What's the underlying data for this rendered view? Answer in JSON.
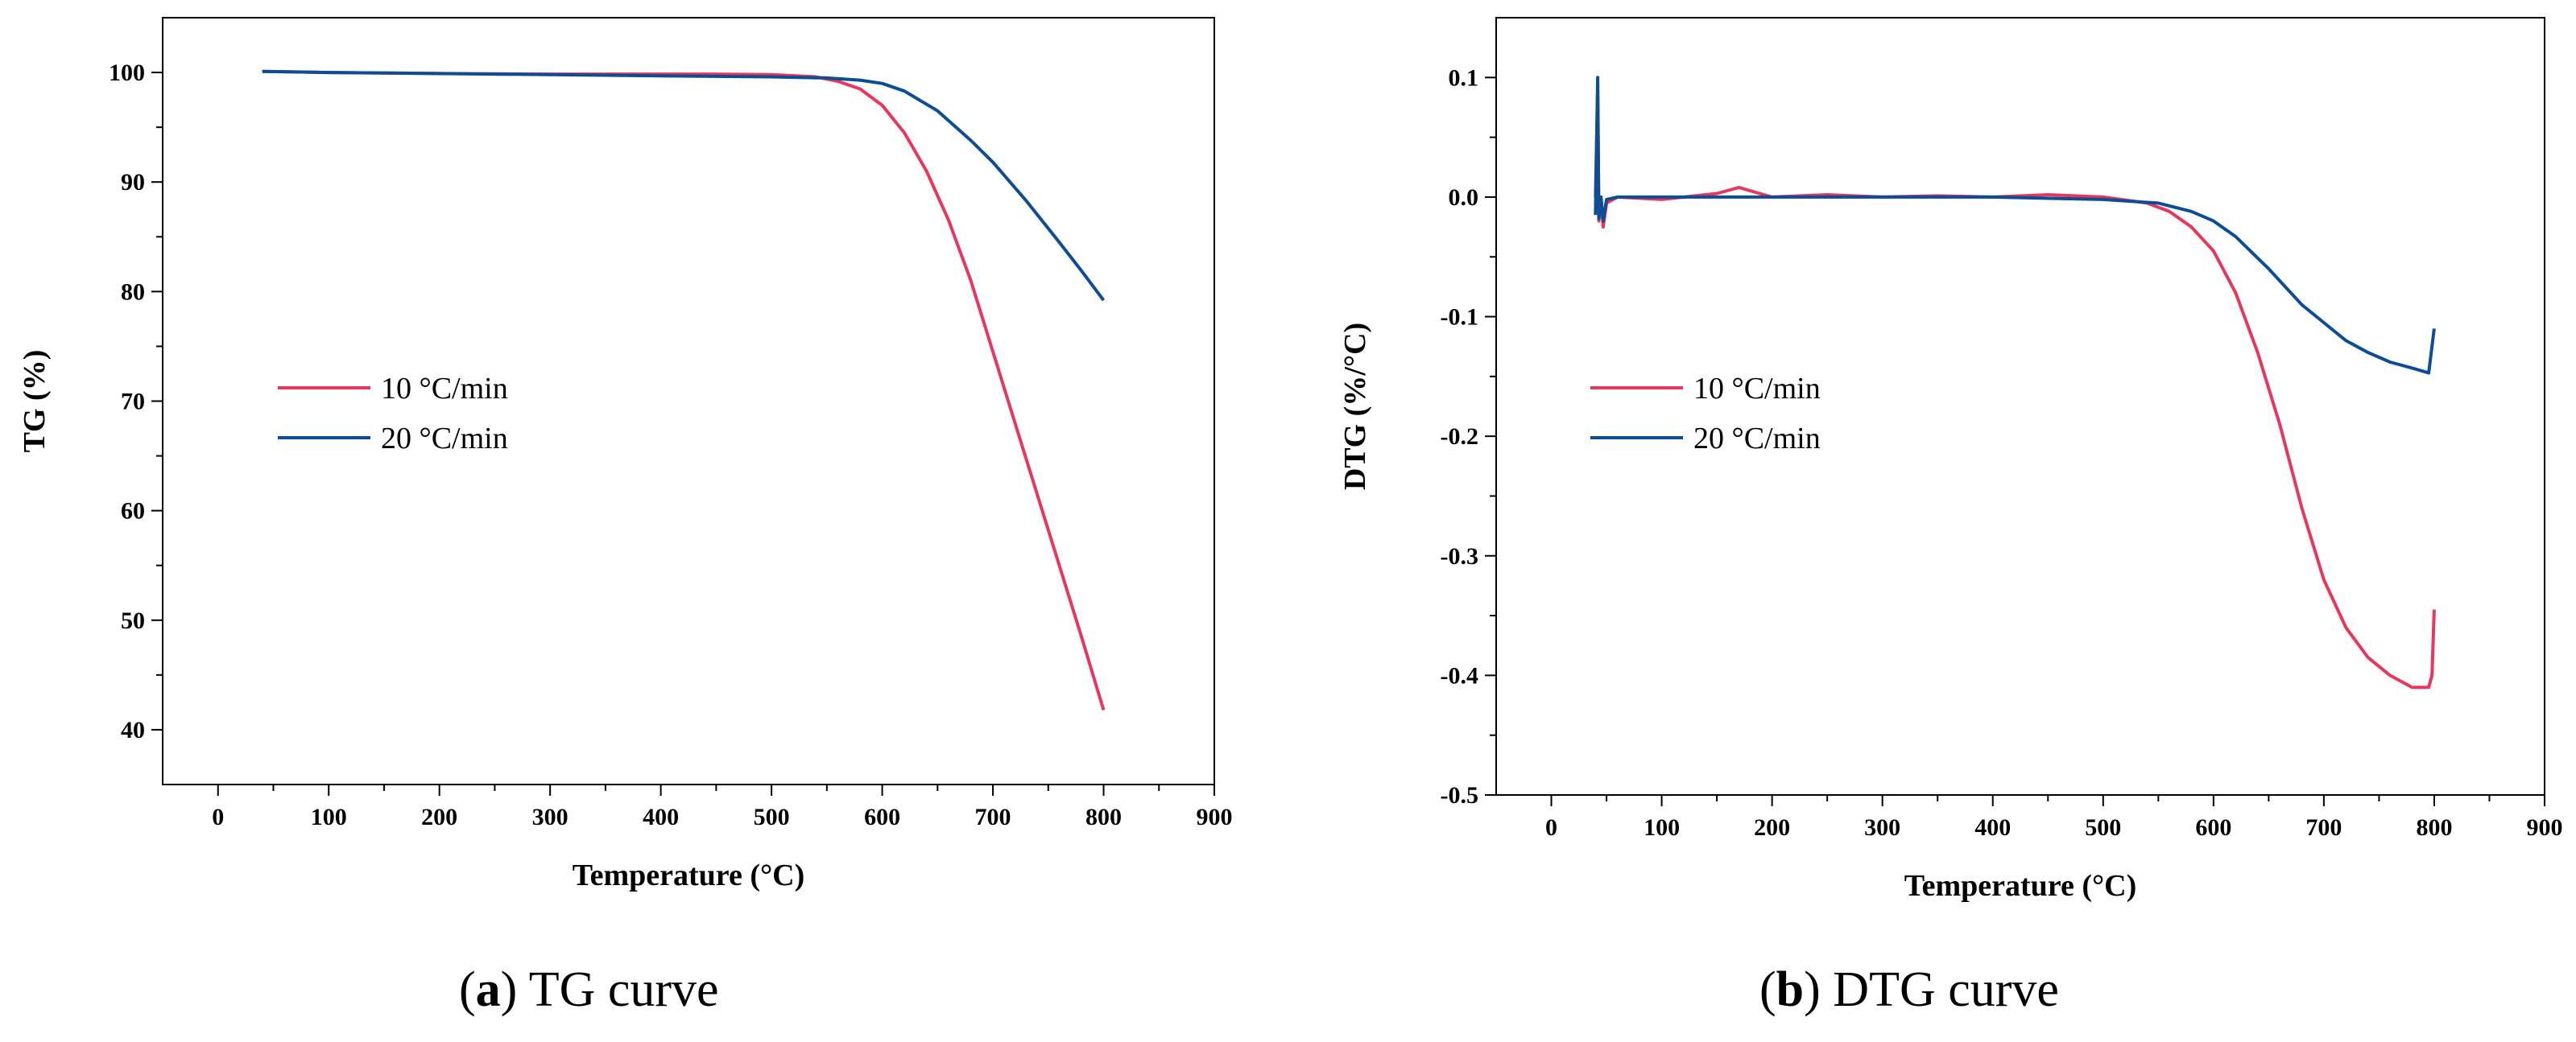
{
  "chart_data": [
    {
      "id": "a",
      "type": "line",
      "caption_letter": "a",
      "caption_text": " TG curve",
      "xlabel": "Temperature (°C)",
      "ylabel": "TG (%)",
      "xlim": [
        -50,
        900
      ],
      "ylim": [
        35,
        105
      ],
      "xticks": [
        0,
        100,
        200,
        300,
        400,
        500,
        600,
        700,
        800,
        900
      ],
      "yticks": [
        40,
        50,
        60,
        70,
        80,
        90,
        100
      ],
      "ytick_decimals": 0,
      "grid": false,
      "legend_position": "center-left",
      "series": [
        {
          "name": "10 °C/min",
          "color": "#e8365d",
          "x": [
            40,
            100,
            200,
            300,
            400,
            450,
            500,
            540,
            560,
            580,
            600,
            620,
            640,
            660,
            680,
            700,
            720,
            740,
            760,
            780,
            800
          ],
          "y": [
            100.1,
            100.0,
            99.9,
            99.85,
            99.85,
            99.85,
            99.8,
            99.6,
            99.2,
            98.5,
            97.0,
            94.5,
            91.0,
            86.5,
            81.0,
            74.5,
            68.0,
            61.5,
            55.0,
            48.5,
            41.8
          ]
        },
        {
          "name": "20 °C/min",
          "color": "#0d4d94",
          "x": [
            40,
            100,
            200,
            300,
            400,
            500,
            550,
            580,
            600,
            620,
            650,
            680,
            700,
            730,
            760,
            780,
            800
          ],
          "y": [
            100.1,
            100.0,
            99.9,
            99.8,
            99.7,
            99.6,
            99.5,
            99.3,
            99.0,
            98.3,
            96.5,
            93.8,
            91.8,
            88.3,
            84.5,
            81.9,
            79.2
          ]
        }
      ]
    },
    {
      "id": "b",
      "type": "line",
      "caption_letter": "b",
      "caption_text": " DTG curve",
      "xlabel": "Temperature (°C)",
      "ylabel": "DTG (%/°C)",
      "xlim": [
        -50,
        900
      ],
      "ylim": [
        -0.5,
        0.15
      ],
      "xticks": [
        0,
        100,
        200,
        300,
        400,
        500,
        600,
        700,
        800,
        900
      ],
      "yticks": [
        -0.5,
        -0.4,
        -0.3,
        -0.2,
        -0.1,
        0.0,
        0.1
      ],
      "ytick_decimals": 1,
      "grid": false,
      "legend_position": "center-left",
      "series": [
        {
          "name": "10 °C/min",
          "color": "#e8365d",
          "x": [
            40,
            42,
            43,
            45,
            47,
            50,
            60,
            100,
            150,
            170,
            200,
            250,
            300,
            350,
            400,
            450,
            500,
            540,
            560,
            580,
            600,
            620,
            640,
            660,
            680,
            700,
            720,
            740,
            760,
            780,
            795,
            798,
            800
          ],
          "y": [
            0.0,
            0.09,
            -0.02,
            0.0,
            -0.025,
            -0.005,
            0.0,
            -0.002,
            0.003,
            0.008,
            0.0,
            0.002,
            0.0,
            0.001,
            0.0,
            0.002,
            0.0,
            -0.005,
            -0.012,
            -0.025,
            -0.045,
            -0.08,
            -0.13,
            -0.19,
            -0.26,
            -0.32,
            -0.36,
            -0.385,
            -0.4,
            -0.41,
            -0.41,
            -0.4,
            -0.345
          ]
        },
        {
          "name": "20 °C/min",
          "color": "#0d4d94",
          "x": [
            40,
            42,
            43,
            45,
            47,
            50,
            60,
            100,
            200,
            300,
            400,
            500,
            550,
            580,
            600,
            620,
            650,
            680,
            700,
            720,
            740,
            760,
            780,
            795,
            800
          ],
          "y": [
            -0.015,
            0.1,
            -0.018,
            0.0,
            -0.02,
            -0.002,
            0.0,
            0.0,
            0.0,
            0.0,
            0.0,
            -0.002,
            -0.005,
            -0.012,
            -0.02,
            -0.033,
            -0.06,
            -0.09,
            -0.105,
            -0.12,
            -0.13,
            -0.138,
            -0.143,
            -0.147,
            -0.11
          ]
        }
      ]
    }
  ]
}
